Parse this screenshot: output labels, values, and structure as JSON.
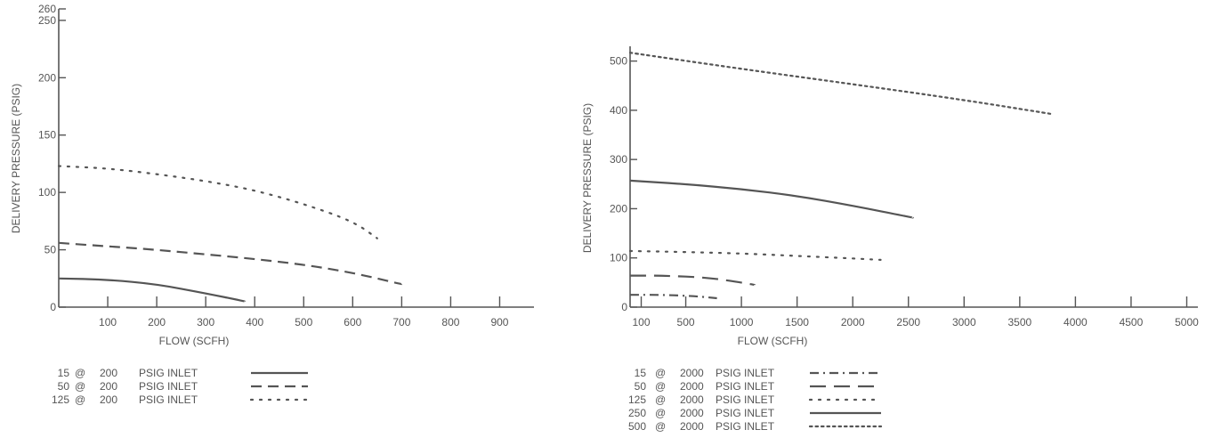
{
  "chart_data": [
    {
      "type": "line",
      "xlabel": "FLOW (SCFH)",
      "ylabel": "DELIVERY PRESSURE (PSIG)",
      "xlim": [
        0,
        970
      ],
      "ylim": [
        0,
        260
      ],
      "xticks": [
        100,
        200,
        300,
        400,
        500,
        600,
        700,
        800,
        900
      ],
      "xtick_labels": [
        "100",
        "200",
        "300",
        "400",
        "500",
        "600",
        "700",
        "800",
        "900"
      ],
      "yticks": [
        0,
        50,
        100,
        150,
        200,
        250,
        260
      ],
      "ytick_labels": [
        "0",
        "50",
        "100",
        "150",
        "200",
        "250",
        "260"
      ],
      "grid": false,
      "legend_position": "bottom-left",
      "series": [
        {
          "name": "15 @ 200 PSIG INLET",
          "style": "solid",
          "points": [
            [
              0,
              25
            ],
            [
              100,
              24
            ],
            [
              200,
              20
            ],
            [
              300,
              12
            ],
            [
              380,
              5
            ]
          ]
        },
        {
          "name": "50 @ 200 PSIG INLET",
          "style": "dashed",
          "points": [
            [
              0,
              56
            ],
            [
              100,
              53
            ],
            [
              200,
              50
            ],
            [
              300,
              46
            ],
            [
              400,
              42
            ],
            [
              500,
              37
            ],
            [
              600,
              30
            ],
            [
              700,
              20
            ]
          ]
        },
        {
          "name": "125 @ 200 PSIG INLET",
          "style": "dotted",
          "points": [
            [
              0,
              123
            ],
            [
              100,
              121
            ],
            [
              200,
              116
            ],
            [
              300,
              110
            ],
            [
              400,
              102
            ],
            [
              500,
              90
            ],
            [
              600,
              75
            ],
            [
              650,
              60
            ]
          ]
        }
      ],
      "legend": [
        {
          "pressure": "15",
          "at": "@",
          "inlet": "200",
          "suffix": "PSIG INLET",
          "style": "solid"
        },
        {
          "pressure": "50",
          "at": "@",
          "inlet": "200",
          "suffix": "PSIG INLET",
          "style": "dashed"
        },
        {
          "pressure": "125",
          "at": "@",
          "inlet": "200",
          "suffix": "PSIG INLET",
          "style": "dotted"
        }
      ]
    },
    {
      "type": "line",
      "xlabel": "FLOW (SCFH)",
      "ylabel": "DELIVERY PRESSURE (PSIG)",
      "xlim": [
        0,
        5100
      ],
      "ylim": [
        0,
        530
      ],
      "xticks": [
        100,
        500,
        1000,
        1500,
        2000,
        2500,
        3000,
        3500,
        4000,
        4500,
        5000
      ],
      "xtick_labels": [
        "100",
        "500",
        "1000",
        "1500",
        "2000",
        "2500",
        "3000",
        "3500",
        "4000",
        "4500",
        "5000"
      ],
      "yticks": [
        0,
        100,
        200,
        300,
        400,
        500
      ],
      "ytick_labels": [
        "0",
        "100",
        "200",
        "300",
        "400",
        "500"
      ],
      "grid": false,
      "legend_position": "bottom-left",
      "series": [
        {
          "name": "15 @ 2000 PSIG INLET",
          "style": "dashdot",
          "points": [
            [
              0,
              25
            ],
            [
              300,
              25
            ],
            [
              600,
              22
            ],
            [
              780,
              18
            ]
          ]
        },
        {
          "name": "50 @ 2000 PSIG INLET",
          "style": "longdash",
          "points": [
            [
              0,
              64
            ],
            [
              300,
              64
            ],
            [
              700,
              60
            ],
            [
              1000,
              50
            ],
            [
              1120,
              45
            ]
          ]
        },
        {
          "name": "125 @ 2000 PSIG INLET",
          "style": "dotted",
          "points": [
            [
              0,
              114
            ],
            [
              500,
              112
            ],
            [
              1000,
              109
            ],
            [
              1500,
              104
            ],
            [
              2000,
              99
            ],
            [
              2250,
              96
            ]
          ]
        },
        {
          "name": "250 @ 2000 PSIG INLET",
          "style": "solid",
          "points": [
            [
              0,
              257
            ],
            [
              500,
              250
            ],
            [
              1000,
              240
            ],
            [
              1500,
              226
            ],
            [
              2000,
              206
            ],
            [
              2540,
              182
            ]
          ]
        },
        {
          "name": "500 @ 2000 PSIG INLET",
          "style": "dense-dotted",
          "points": [
            [
              0,
              517
            ],
            [
              1000,
              484
            ],
            [
              2000,
              453
            ],
            [
              3000,
              421
            ],
            [
              3800,
              392
            ]
          ]
        }
      ],
      "legend": [
        {
          "pressure": "15",
          "at": "@",
          "inlet": "2000",
          "suffix": "PSIG INLET",
          "style": "dashdot"
        },
        {
          "pressure": "50",
          "at": "@",
          "inlet": "2000",
          "suffix": "PSIG INLET",
          "style": "longdash"
        },
        {
          "pressure": "125",
          "at": "@",
          "inlet": "2000",
          "suffix": "PSIG INLET",
          "style": "dotted"
        },
        {
          "pressure": "250",
          "at": "@",
          "inlet": "2000",
          "suffix": "PSIG INLET",
          "style": "solid"
        },
        {
          "pressure": "500",
          "at": "@",
          "inlet": "2000",
          "suffix": "PSIG INLET",
          "style": "dense-dotted"
        }
      ]
    }
  ]
}
